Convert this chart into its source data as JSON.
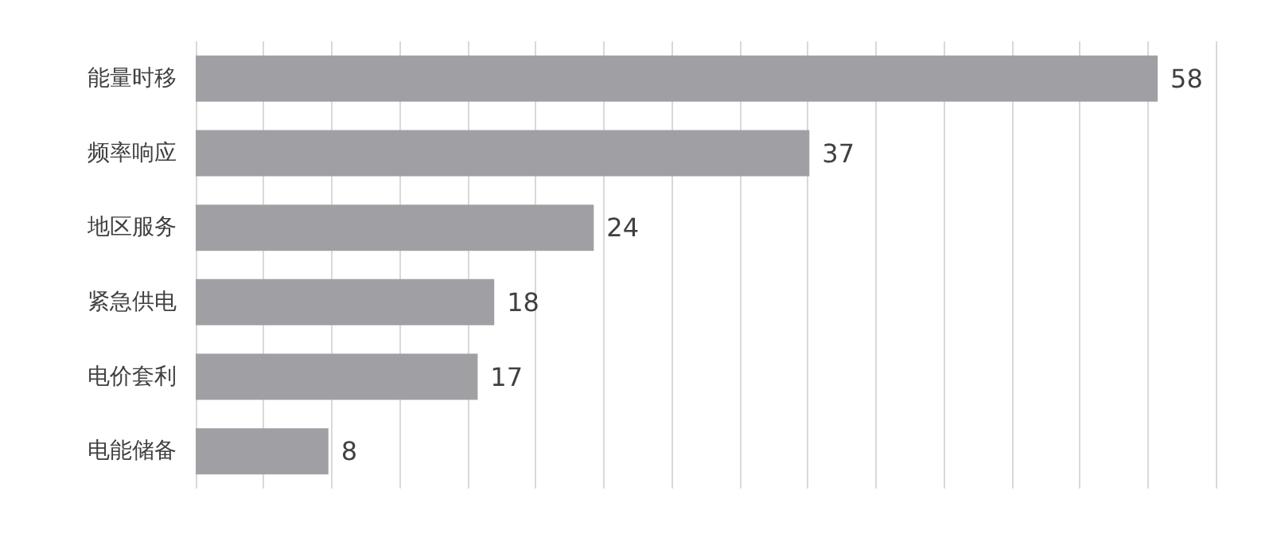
{
  "chart_data": {
    "type": "bar",
    "orientation": "horizontal",
    "categories": [
      "能量时移",
      "频率响应",
      "地区服务",
      "紧急供电",
      "电价套利",
      "电能储备"
    ],
    "values": [
      58,
      37,
      24,
      18,
      17,
      8
    ],
    "color": "#a0a0a4",
    "data_labels": true,
    "grid": "x",
    "tick_labels": "y",
    "xlim": [
      0,
      61.5
    ],
    "xticks": [
      {
        "value": 0,
        "label": null
      },
      {
        "value": 4.1,
        "label": null
      },
      {
        "value": 8.2,
        "label": null
      },
      {
        "value": 12.3,
        "label": null
      },
      {
        "value": 16.4,
        "label": null
      },
      {
        "value": 20.5,
        "label": null
      },
      {
        "value": 24.6,
        "label": null
      },
      {
        "value": 28.7,
        "label": null
      },
      {
        "value": 32.8,
        "label": null
      },
      {
        "value": 36.9,
        "label": null
      },
      {
        "value": 41,
        "label": null
      },
      {
        "value": 45.1,
        "label": null
      },
      {
        "value": 49.2,
        "label": null
      },
      {
        "value": 53.3,
        "label": null
      },
      {
        "value": 57.4,
        "label": null
      },
      {
        "value": 61.5,
        "label": null
      }
    ]
  }
}
